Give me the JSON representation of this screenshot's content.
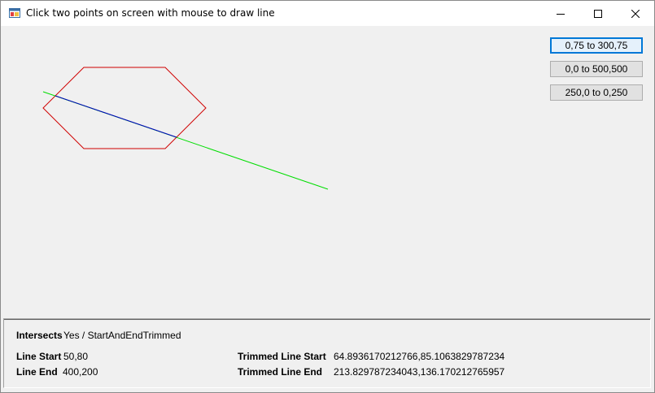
{
  "window": {
    "title": "Click two points on screen with mouse to draw line"
  },
  "buttons": [
    {
      "label": "0,75 to 300,75"
    },
    {
      "label": "0,0 to 500,500"
    },
    {
      "label": "250,0 to 0,250"
    }
  ],
  "drawing": {
    "hexagon": {
      "color": "#d00000"
    },
    "full_line": {
      "color": "#00dd00"
    },
    "trimmed_line": {
      "color": "#0000c0"
    }
  },
  "info": {
    "intersects_label": "Intersects",
    "intersects_value": "Yes / StartAndEndTrimmed",
    "line_start_label": "Line Start",
    "line_start_value": "50,80",
    "line_end_label": "Line End",
    "line_end_value": "400,200",
    "trimmed_start_label": "Trimmed Line Start",
    "trimmed_start_value": "64.8936170212766,85.1063829787234",
    "trimmed_end_label": "Trimmed Line End",
    "trimmed_end_value": "213.829787234043,136.170212765957"
  }
}
